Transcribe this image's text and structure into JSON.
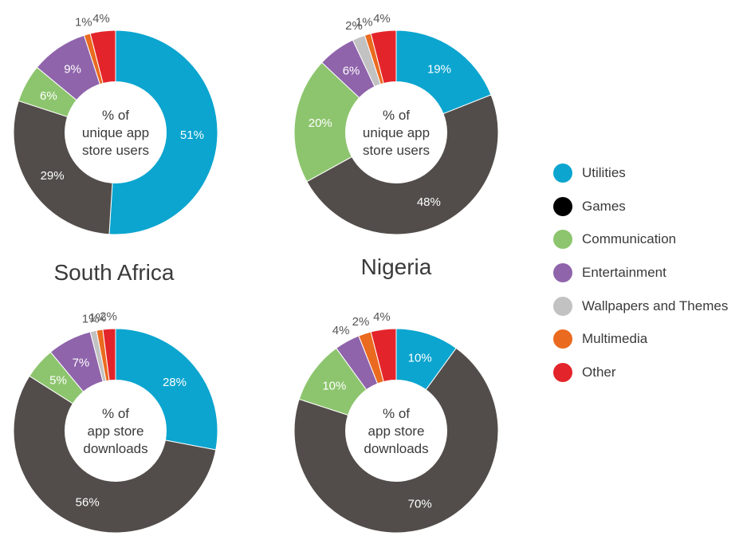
{
  "legend": [
    {
      "name": "Utilities",
      "color": "#0ba5cf"
    },
    {
      "name": "Games",
      "color": "#000000"
    },
    {
      "name": "Communication",
      "color": "#8dc56e"
    },
    {
      "name": "Entertainment",
      "color": "#8f64ab"
    },
    {
      "name": "Wallpapers and Themes",
      "color": "#c2c2c2"
    },
    {
      "name": "Multimedia",
      "color": "#ea6a1f"
    },
    {
      "name": "Other",
      "color": "#e3252b"
    }
  ],
  "center_labels": {
    "users": [
      "% of",
      "unique app",
      "store users"
    ],
    "downloads": [
      "% of",
      "app store",
      "downloads"
    ]
  },
  "chart_data": [
    {
      "type": "pie",
      "country": "South Africa",
      "metric": "users",
      "slices": [
        {
          "category": "Utilities",
          "value": 51,
          "label": "51%"
        },
        {
          "category": "Games",
          "value": 29,
          "label": "29%"
        },
        {
          "category": "Communication",
          "value": 6,
          "label": "6%"
        },
        {
          "category": "Entertainment",
          "value": 9,
          "label": "9%"
        },
        {
          "category": "Multimedia",
          "value": 1,
          "label": "1%"
        },
        {
          "category": "Other",
          "value": 4,
          "label": "4%"
        }
      ]
    },
    {
      "type": "pie",
      "country": "Nigeria",
      "metric": "users",
      "slices": [
        {
          "category": "Utilities",
          "value": 19,
          "label": "19%"
        },
        {
          "category": "Games",
          "value": 48,
          "label": "48%"
        },
        {
          "category": "Communication",
          "value": 20,
          "label": "20%"
        },
        {
          "category": "Entertainment",
          "value": 6,
          "label": "6%"
        },
        {
          "category": "Wallpapers and Themes",
          "value": 2,
          "label": "2%"
        },
        {
          "category": "Multimedia",
          "value": 1,
          "label": "1%"
        },
        {
          "category": "Other",
          "value": 4,
          "label": "4%"
        }
      ]
    },
    {
      "type": "pie",
      "country": "South Africa",
      "metric": "downloads",
      "slices": [
        {
          "category": "Utilities",
          "value": 28,
          "label": "28%"
        },
        {
          "category": "Games",
          "value": 56,
          "label": "56%"
        },
        {
          "category": "Communication",
          "value": 5,
          "label": "5%"
        },
        {
          "category": "Entertainment",
          "value": 7,
          "label": "7%"
        },
        {
          "category": "Wallpapers and Themes",
          "value": 1,
          "label": "1%"
        },
        {
          "category": "Multimedia",
          "value": 1,
          "label": "1%"
        },
        {
          "category": "Other",
          "value": 2,
          "label": "2%"
        }
      ]
    },
    {
      "type": "pie",
      "country": "Nigeria",
      "metric": "downloads",
      "slices": [
        {
          "category": "Utilities",
          "value": 10,
          "label": "10%"
        },
        {
          "category": "Games",
          "value": 70,
          "label": "70%"
        },
        {
          "category": "Communication",
          "value": 10,
          "label": "10%"
        },
        {
          "category": "Entertainment",
          "value": 4,
          "label": "4%"
        },
        {
          "category": "Multimedia",
          "value": 2,
          "label": "2%"
        },
        {
          "category": "Other",
          "value": 4,
          "label": "4%"
        }
      ]
    }
  ]
}
